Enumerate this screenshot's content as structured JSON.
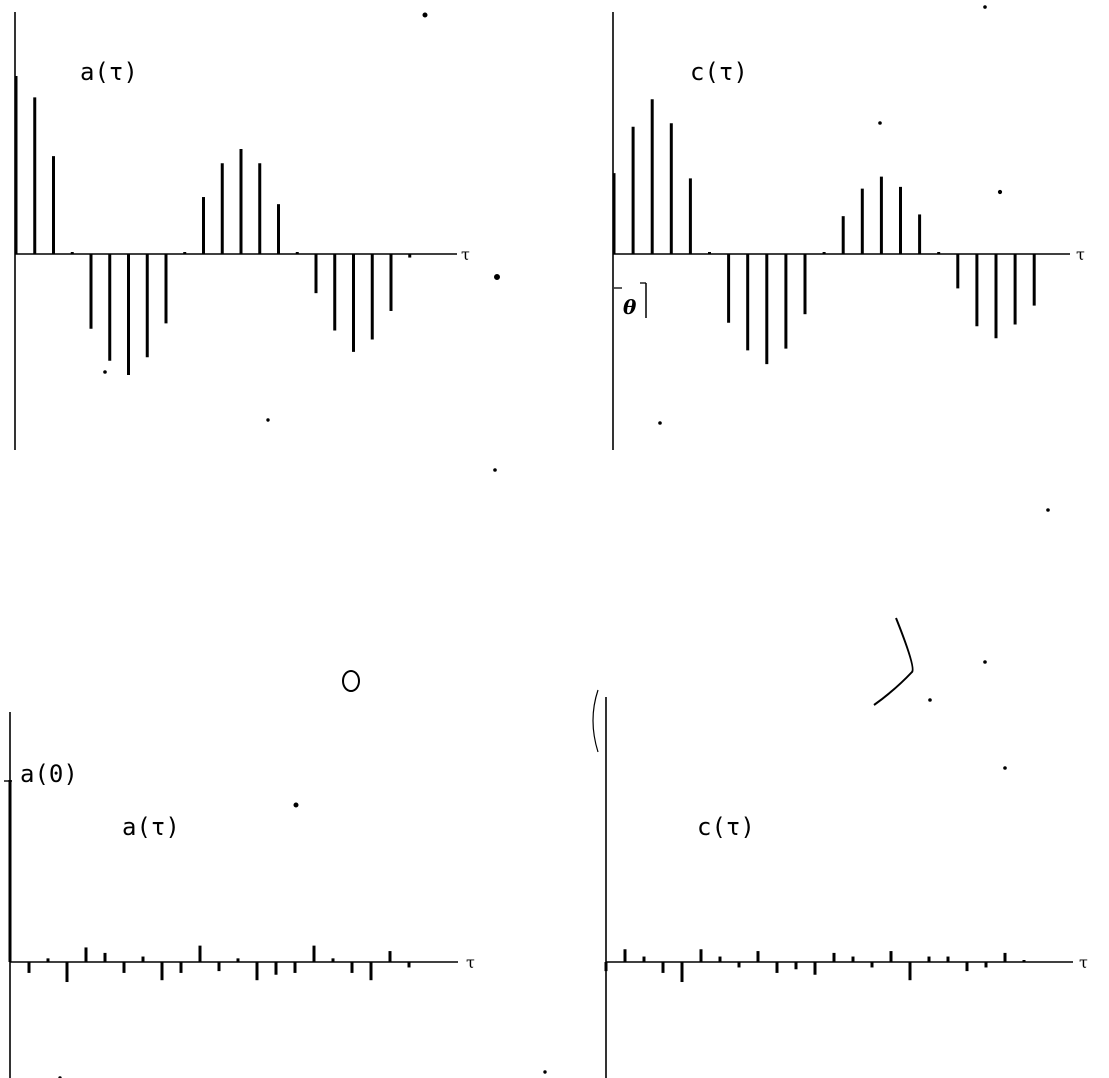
{
  "chart_data": [
    {
      "type": "stem",
      "label": "a(τ)",
      "x_axis_label": "τ",
      "x": [
        0,
        1,
        2,
        3,
        4,
        5,
        6,
        7,
        8,
        9,
        10,
        11,
        12,
        13,
        14,
        15,
        16,
        17,
        18,
        19,
        20,
        21
      ],
      "values": [
        1.0,
        0.88,
        0.55,
        0.01,
        -0.42,
        -0.6,
        -0.68,
        -0.58,
        -0.39,
        0.0,
        0.32,
        0.51,
        0.59,
        0.51,
        0.28,
        0.0,
        -0.22,
        -0.43,
        -0.55,
        -0.48,
        -0.32,
        -0.02
      ],
      "ylim": [
        -1,
        1
      ]
    },
    {
      "type": "stem",
      "label": "c(τ)",
      "x_axis_label": "τ",
      "annotation": "θ",
      "x": [
        0,
        1,
        2,
        3,
        4,
        5,
        6,
        7,
        8,
        9,
        10,
        11,
        12,
        13,
        14,
        15,
        16,
        17,
        18,
        19,
        20,
        21,
        22
      ],
      "values": [
        0.47,
        0.74,
        0.9,
        0.76,
        0.44,
        0.0,
        -0.4,
        -0.56,
        -0.64,
        -0.55,
        -0.35,
        0.0,
        0.22,
        0.38,
        0.45,
        0.39,
        0.23,
        0.0,
        -0.2,
        -0.42,
        -0.49,
        -0.41,
        -0.3
      ],
      "ylim": [
        -1,
        1
      ]
    },
    {
      "type": "stem",
      "label": "a(τ)",
      "peak_label": "a(0)",
      "x_axis_label": "τ",
      "x": [
        0,
        1,
        2,
        3,
        4,
        5,
        6,
        7,
        8,
        9,
        10,
        11,
        12,
        13,
        14,
        15,
        16,
        17,
        18,
        19,
        20,
        21
      ],
      "values": [
        1.0,
        -0.06,
        0.02,
        -0.11,
        0.08,
        0.05,
        -0.06,
        0.03,
        -0.1,
        -0.06,
        0.09,
        -0.05,
        0.02,
        -0.1,
        -0.07,
        -0.06,
        0.09,
        0.02,
        -0.06,
        -0.1,
        0.06,
        -0.03
      ],
      "ylim": [
        -1,
        1
      ]
    },
    {
      "type": "stem",
      "label": "c(τ)",
      "x_axis_label": "τ",
      "x": [
        0,
        1,
        2,
        3,
        4,
        5,
        6,
        7,
        8,
        9,
        10,
        11,
        12,
        13,
        14,
        15,
        16,
        17,
        18,
        19,
        20,
        21,
        22
      ],
      "values": [
        -0.05,
        0.07,
        0.03,
        -0.06,
        -0.11,
        0.07,
        0.03,
        -0.03,
        0.06,
        -0.06,
        -0.04,
        -0.07,
        0.05,
        0.03,
        -0.03,
        0.06,
        -0.1,
        0.03,
        0.03,
        -0.05,
        -0.03,
        0.05,
        0.0
      ],
      "ylim": [
        -1,
        1
      ]
    }
  ]
}
